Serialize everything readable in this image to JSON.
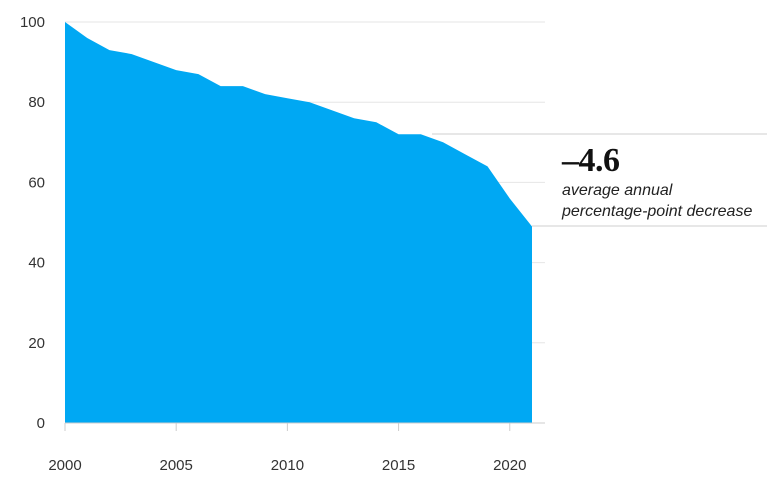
{
  "chart_data": {
    "type": "area",
    "x": [
      2000,
      2001,
      2002,
      2003,
      2004,
      2005,
      2006,
      2007,
      2008,
      2009,
      2010,
      2011,
      2012,
      2013,
      2014,
      2015,
      2016,
      2017,
      2018,
      2019,
      2020,
      2021
    ],
    "series": [
      {
        "values": [
          100,
          96,
          93,
          92,
          90,
          88,
          87,
          84,
          84,
          82,
          81,
          80,
          78,
          76,
          75,
          72,
          72,
          70,
          67,
          64,
          56,
          49
        ]
      }
    ],
    "xticks": [
      "2000",
      "2005",
      "2010",
      "2015",
      "2020"
    ],
    "yticks": [
      "0",
      "20",
      "40",
      "60",
      "80",
      "100"
    ],
    "xlim": [
      2000,
      2021
    ],
    "ylim": [
      0,
      100
    ],
    "grid": true,
    "title": "",
    "xlabel": "",
    "ylabel": "",
    "colors": {
      "area": "#00a8f3",
      "grid": "#e6e6e6",
      "callout_line": "#cfcfcf"
    },
    "annotation": {
      "value": "–4.6",
      "line1": "average annual",
      "line2": "percentage-point decrease"
    }
  }
}
